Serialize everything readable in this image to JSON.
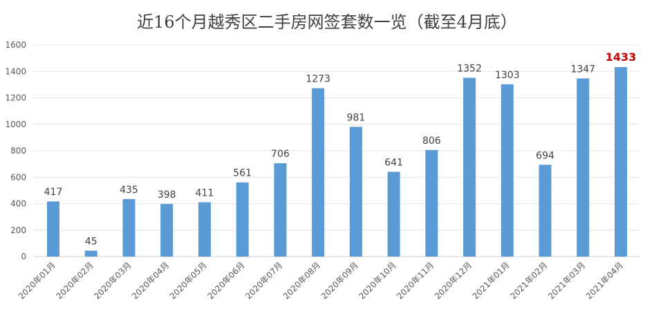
{
  "chart_data": {
    "type": "bar",
    "title": "近16个月越秀区二手房网签套数一览（截至4月底）",
    "categories": [
      "2020年01月",
      "2020年02月",
      "2020年03月",
      "2020年04月",
      "2020年05月",
      "2020年06月",
      "2020年07月",
      "2020年08月",
      "2020年09月",
      "2020年10月",
      "2020年11月",
      "2020年12月",
      "2021年01月",
      "2021年02月",
      "2021年03月",
      "2021年04月"
    ],
    "values": [
      417,
      45,
      435,
      398,
      411,
      561,
      706,
      1273,
      981,
      641,
      806,
      1352,
      1303,
      694,
      1347,
      1433
    ],
    "ylim": [
      0,
      1600
    ],
    "yticks": [
      0,
      200,
      400,
      600,
      800,
      1000,
      1200,
      1400,
      1600
    ],
    "grid": true,
    "legend": "none",
    "bar_color": "#5B9BD5",
    "highlight_label_color": "#C00000",
    "highlight_index": 15
  }
}
